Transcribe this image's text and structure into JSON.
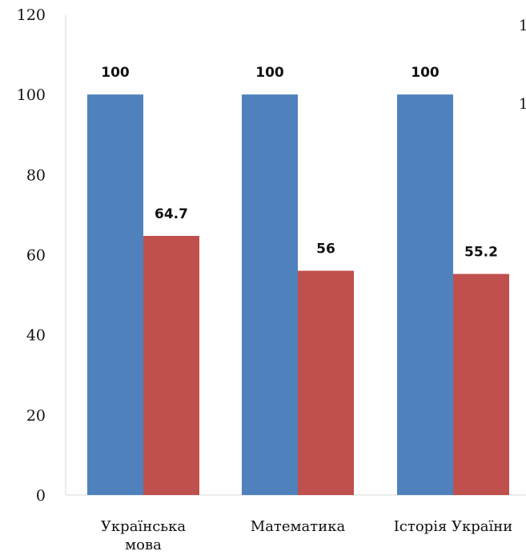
{
  "chart_data": {
    "type": "bar",
    "categories": [
      [
        "Українська",
        "мова"
      ],
      [
        "Математика"
      ],
      [
        "Історія України"
      ]
    ],
    "series": [
      {
        "values": [
          100,
          100,
          100
        ],
        "color": "#4F81BD"
      },
      {
        "values": [
          64.7,
          56,
          55.2
        ],
        "color": "#C0504D"
      }
    ],
    "data_labels": [
      [
        "100",
        "100",
        "100"
      ],
      [
        "64.7",
        "56",
        "55.2"
      ]
    ],
    "ylim": [
      0,
      120
    ],
    "y_ticks": [
      0,
      20,
      40,
      60,
      80,
      100,
      120
    ],
    "grid": false,
    "legend_fragments": [
      "1",
      "1"
    ]
  }
}
